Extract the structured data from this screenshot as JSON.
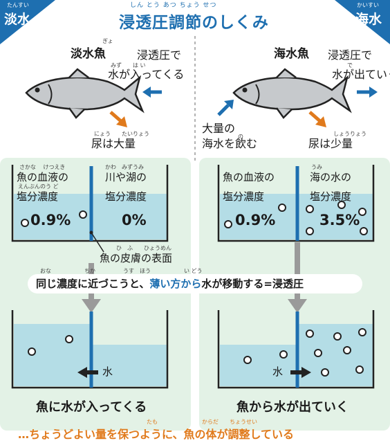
{
  "corners": {
    "left": {
      "label": "淡水",
      "ruby": "たんすい"
    },
    "right": {
      "label": "海水",
      "ruby": "かいすい"
    }
  },
  "title": {
    "text": "浸透圧調節のしくみ",
    "ruby": "しん とう あつ ちょう せつ"
  },
  "freshwater": {
    "fish_name": "淡水魚",
    "fish_name_ruby": "ぎょ",
    "water_note_1": "浸透圧で",
    "water_note_2": "水が入ってくる",
    "water_note_ruby": "みず　　は い",
    "urine_note": "尿は大量",
    "urine_ruby": "にょう　　たいりょう"
  },
  "seawater": {
    "fish_name": "海水魚",
    "water_note_1": "浸透圧で",
    "water_note_2": "水が出ていく",
    "water_note_ruby": "で",
    "drink_note_1": "大量の",
    "drink_note_2": "海水を飲む",
    "drink_ruby": "の",
    "urine_note": "尿は少量",
    "urine_ruby": "しょうりょう"
  },
  "beakers_top": {
    "fresh_left": {
      "label1": "魚の血液の",
      "label2": "塩分濃度",
      "ruby1": "さかな　 けつえき",
      "ruby2": "えんぶんのう ど",
      "value": "0.9%"
    },
    "fresh_right": {
      "label1": "川や湖の",
      "label2": "塩分濃度",
      "ruby1": "かわ　みずうみ",
      "value": "0%"
    },
    "sea_left": {
      "label1": "魚の血液の",
      "label2": "塩分濃度",
      "value": "0.9%"
    },
    "sea_right": {
      "label1": "海の水の",
      "label2": "塩分濃度",
      "ruby1": "うみ",
      "value": "3.5%"
    }
  },
  "skin": {
    "text": "魚の皮膚の表面",
    "ruby": "ひ　ふ　　ひょうめん"
  },
  "principle": {
    "part1": "同じ濃度に近づこうと、",
    "part2": "薄い方から",
    "part3": "水が移動する=浸透圧",
    "ruby": "おな　　　　　　ちか　　　　　うす　ほう　　　　　　い どう"
  },
  "beakers_bottom": {
    "fresh_arrow_label": "水",
    "sea_arrow_label": "水",
    "fresh_caption": "魚に水が入ってくる",
    "sea_caption": "魚から水が出ていく"
  },
  "footer": {
    "text": "…ちょうどよい量を保つように、魚の体が調整している",
    "ruby": "たも　　　　　　　　からだ　　ちょうせい"
  },
  "colors": {
    "accent_blue": "#1e6fb0",
    "accent_orange": "#e07a1c",
    "water": "#b4dde6",
    "panel": "#e3f2e6"
  }
}
